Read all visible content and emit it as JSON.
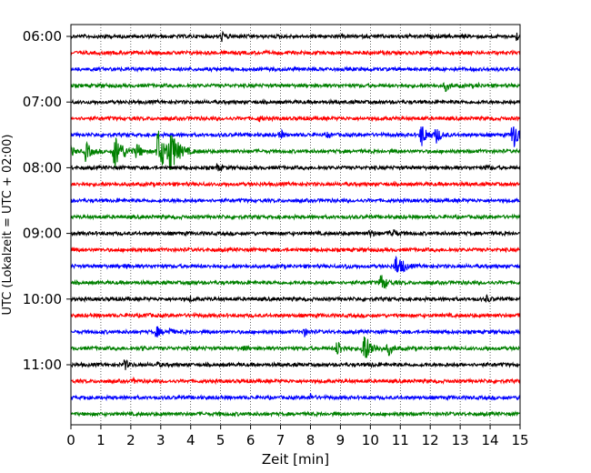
{
  "chart_data": {
    "type": "line",
    "title": "",
    "xlabel": "Zeit  [min]",
    "ylabel": "UTC (Lokalzeit = UTC + 02:00)",
    "xlim": [
      0,
      15
    ],
    "x_ticks": [
      "0",
      "1",
      "2",
      "3",
      "4",
      "5",
      "6",
      "7",
      "8",
      "9",
      "10",
      "11",
      "12",
      "13",
      "14",
      "15"
    ],
    "y_ticks": [
      "06:00",
      "07:00",
      "08:00",
      "09:00",
      "10:00",
      "11:00"
    ],
    "grid": "vertical dotted at each minute",
    "trace_colors": [
      "#000000",
      "#ff0000",
      "#0000ff",
      "#008000"
    ],
    "rows_start": "06:00",
    "row_interval_min": 15,
    "series": [
      {
        "start": "06:00",
        "color": "#000000",
        "bursts": [
          {
            "t": 1.1,
            "a": 0.25
          },
          {
            "t": 5.05,
            "a": 0.7
          },
          {
            "t": 14.9,
            "a": 0.6
          }
        ]
      },
      {
        "start": "06:15",
        "color": "#ff0000",
        "bursts": []
      },
      {
        "start": "06:30",
        "color": "#0000ff",
        "bursts": []
      },
      {
        "start": "06:45",
        "color": "#008000",
        "bursts": [
          {
            "t": 12.5,
            "a": 0.8
          },
          {
            "t": 13.6,
            "a": 0.2
          }
        ]
      },
      {
        "start": "07:00",
        "color": "#000000",
        "bursts": []
      },
      {
        "start": "07:15",
        "color": "#ff0000",
        "bursts": [
          {
            "t": 6.3,
            "a": 0.4
          }
        ]
      },
      {
        "start": "07:30",
        "color": "#0000ff",
        "bursts": [
          {
            "t": 7.0,
            "a": 0.7
          },
          {
            "t": 8.6,
            "a": 0.4
          },
          {
            "t": 11.7,
            "a": 1.9
          },
          {
            "t": 12.2,
            "a": 1.2
          },
          {
            "t": 14.75,
            "a": 2.4
          }
        ]
      },
      {
        "start": "07:45",
        "color": "#008000",
        "bursts": [
          {
            "t": 0.0,
            "a": 0.8
          },
          {
            "t": 0.5,
            "a": 1.5
          },
          {
            "t": 1.45,
            "a": 3.0
          },
          {
            "t": 2.2,
            "a": 1.2
          },
          {
            "t": 2.9,
            "a": 3.5
          },
          {
            "t": 3.3,
            "a": 3.0
          }
        ]
      },
      {
        "start": "08:00",
        "color": "#000000",
        "bursts": [
          {
            "t": 4.9,
            "a": 0.6
          },
          {
            "t": 13.9,
            "a": 0.4
          }
        ]
      },
      {
        "start": "08:15",
        "color": "#ff0000",
        "bursts": []
      },
      {
        "start": "08:30",
        "color": "#0000ff",
        "bursts": [
          {
            "t": 3.5,
            "a": 0.25
          }
        ]
      },
      {
        "start": "08:45",
        "color": "#008000",
        "bursts": []
      },
      {
        "start": "09:00",
        "color": "#000000",
        "bursts": [
          {
            "t": 10.0,
            "a": 0.6
          },
          {
            "t": 10.7,
            "a": 1.0
          }
        ]
      },
      {
        "start": "09:15",
        "color": "#ff0000",
        "bursts": []
      },
      {
        "start": "09:30",
        "color": "#0000ff",
        "bursts": [
          {
            "t": 1.8,
            "a": 0.3
          },
          {
            "t": 9.2,
            "a": 0.3
          },
          {
            "t": 10.85,
            "a": 1.8
          },
          {
            "t": 11.1,
            "a": 0.5
          }
        ]
      },
      {
        "start": "09:45",
        "color": "#008000",
        "bursts": [
          {
            "t": 4.0,
            "a": 0.3
          },
          {
            "t": 10.35,
            "a": 1.5
          }
        ]
      },
      {
        "start": "10:00",
        "color": "#000000",
        "bursts": [
          {
            "t": 4.0,
            "a": 0.3
          },
          {
            "t": 13.9,
            "a": 0.5
          }
        ]
      },
      {
        "start": "10:15",
        "color": "#ff0000",
        "bursts": [
          {
            "t": 2.5,
            "a": 0.35
          }
        ]
      },
      {
        "start": "10:30",
        "color": "#0000ff",
        "bursts": [
          {
            "t": 2.85,
            "a": 0.9
          },
          {
            "t": 3.3,
            "a": 0.6
          },
          {
            "t": 7.8,
            "a": 0.6
          }
        ]
      },
      {
        "start": "10:45",
        "color": "#008000",
        "bursts": [
          {
            "t": 2.4,
            "a": 0.25
          },
          {
            "t": 5.8,
            "a": 0.3
          },
          {
            "t": 8.9,
            "a": 1.3
          },
          {
            "t": 9.75,
            "a": 2.8
          },
          {
            "t": 10.6,
            "a": 1.0
          },
          {
            "t": 13.9,
            "a": 0.25
          }
        ]
      },
      {
        "start": "11:00",
        "color": "#000000",
        "bursts": [
          {
            "t": 1.8,
            "a": 0.8
          },
          {
            "t": 2.9,
            "a": 0.3
          },
          {
            "t": 10.0,
            "a": 0.25
          }
        ]
      },
      {
        "start": "11:15",
        "color": "#ff0000",
        "bursts": [
          {
            "t": 2.1,
            "a": 0.3
          }
        ]
      },
      {
        "start": "11:30",
        "color": "#0000ff",
        "bursts": [
          {
            "t": 0.5,
            "a": 0.3
          },
          {
            "t": 8.0,
            "a": 0.45
          },
          {
            "t": 15.0,
            "a": 0.4
          }
        ]
      },
      {
        "start": "11:45",
        "color": "#008000",
        "bursts": [
          {
            "t": 5.0,
            "a": 0.2
          }
        ]
      }
    ]
  }
}
